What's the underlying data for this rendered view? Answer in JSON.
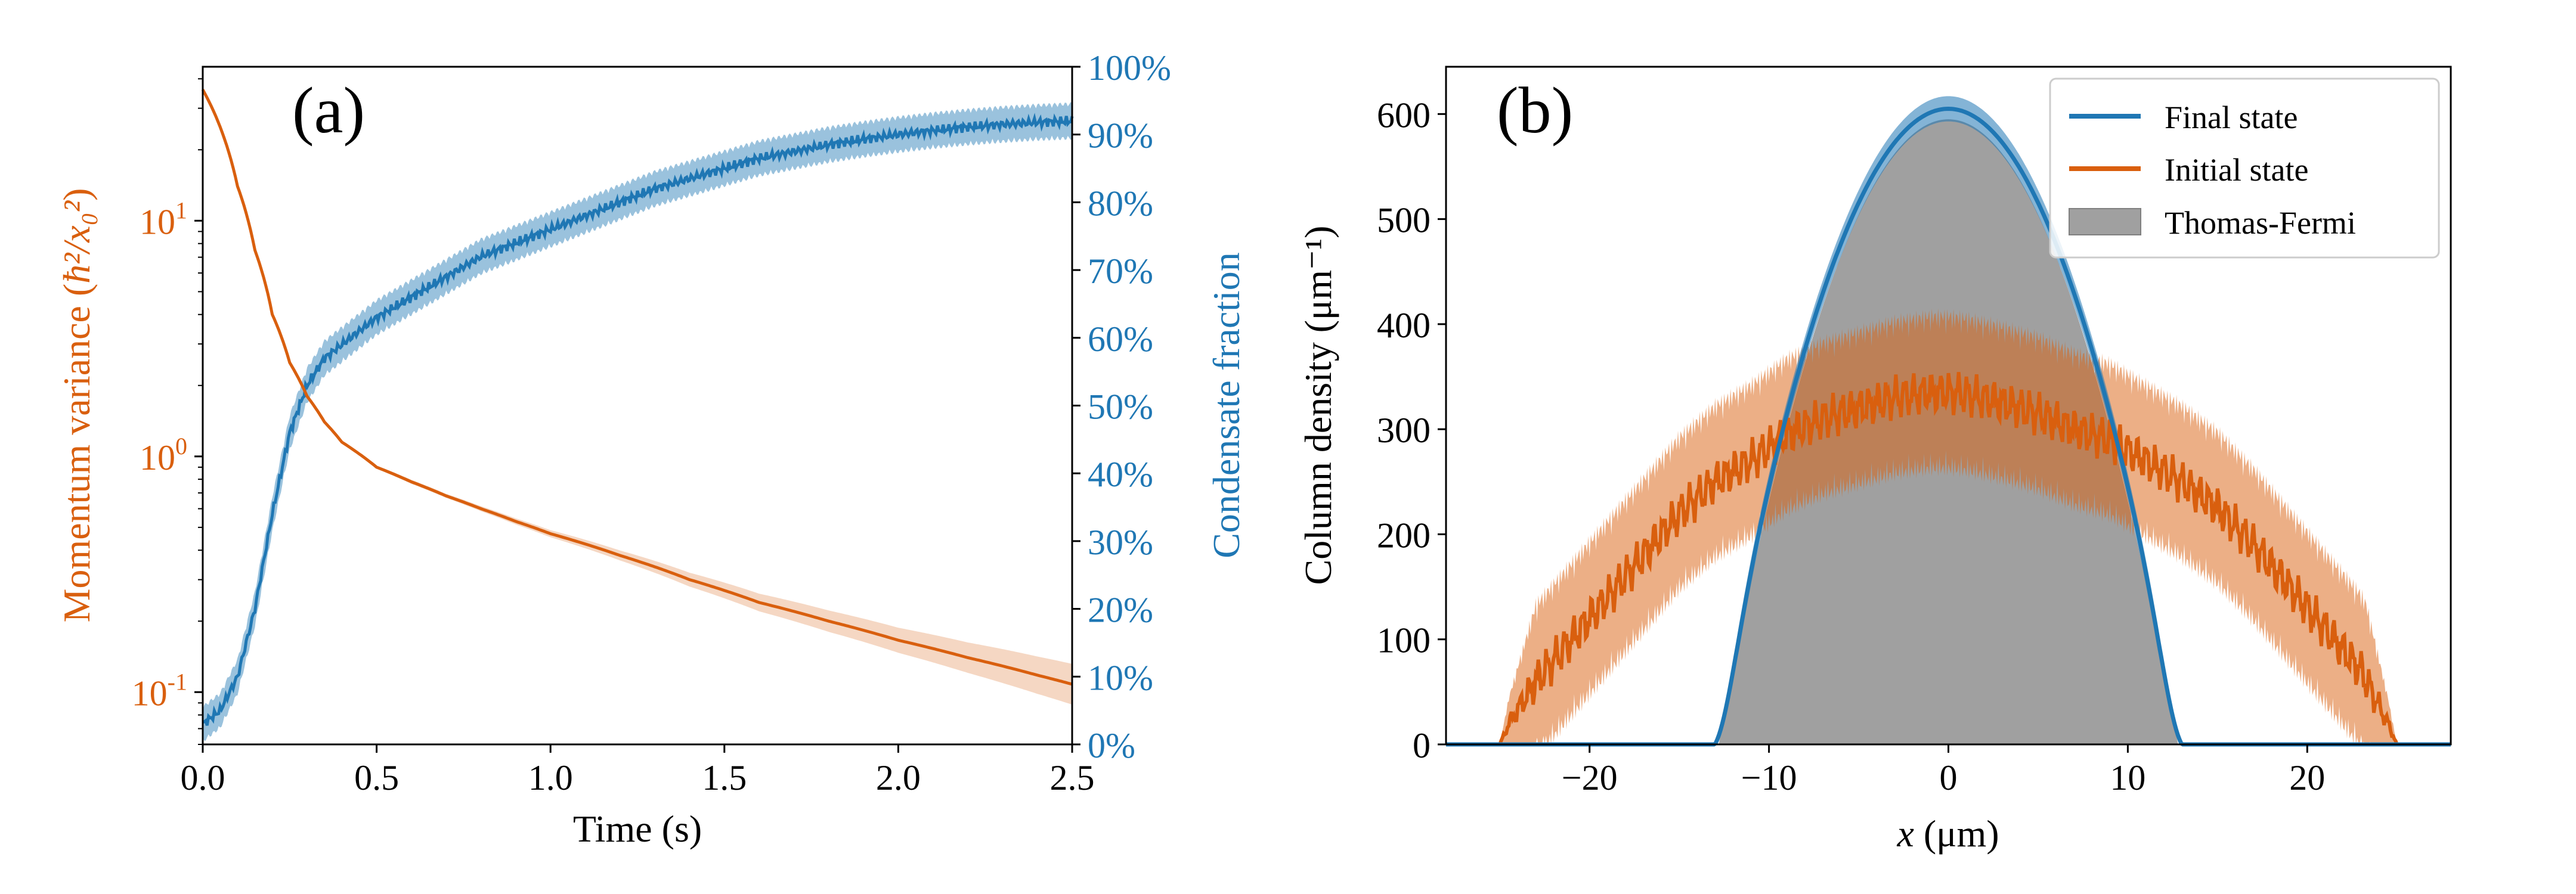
{
  "chart_data": [
    {
      "type": "line",
      "panel_label": "(a)",
      "xlabel": "Time (s)",
      "xlim": [
        0.0,
        2.5
      ],
      "xticks": [
        {
          "v": 0.0,
          "label": "0.0"
        },
        {
          "v": 0.5,
          "label": "0.5"
        },
        {
          "v": 1.0,
          "label": "1.0"
        },
        {
          "v": 1.5,
          "label": "1.5"
        },
        {
          "v": 2.0,
          "label": "2.0"
        },
        {
          "v": 2.5,
          "label": "2.5"
        }
      ],
      "left_axis": {
        "label_main": "Momentum variance (",
        "label_math": "ħ²/x₀²",
        "label_close": ")",
        "scale": "log",
        "lim": [
          0.06,
          45
        ],
        "ticks": [
          {
            "v": 0.1,
            "base": "10",
            "exp": "-1"
          },
          {
            "v": 1,
            "base": "10",
            "exp": "0"
          },
          {
            "v": 10,
            "base": "10",
            "exp": "1"
          }
        ],
        "color": "#d95f0e"
      },
      "right_axis": {
        "label": "Condensate fraction",
        "scale": "linear",
        "lim": [
          0,
          100
        ],
        "ticks": [
          "0%",
          "10%",
          "20%",
          "30%",
          "40%",
          "50%",
          "60%",
          "70%",
          "80%",
          "90%",
          "100%"
        ],
        "tick_values": [
          0,
          10,
          20,
          30,
          40,
          50,
          60,
          70,
          80,
          90,
          100
        ],
        "color": "#1f77b4"
      },
      "series": [
        {
          "name": "Momentum variance",
          "axis": "left",
          "color": "#d95f0e",
          "x": [
            0.0,
            0.05,
            0.1,
            0.15,
            0.2,
            0.25,
            0.3,
            0.35,
            0.4,
            0.5,
            0.6,
            0.7,
            0.8,
            0.9,
            1.0,
            1.2,
            1.4,
            1.6,
            1.8,
            2.0,
            2.2,
            2.4,
            2.5
          ],
          "y": [
            36,
            25,
            14,
            7.5,
            4.0,
            2.5,
            1.8,
            1.4,
            1.15,
            0.9,
            0.78,
            0.68,
            0.6,
            0.53,
            0.47,
            0.38,
            0.3,
            0.24,
            0.2,
            0.166,
            0.14,
            0.118,
            0.108
          ],
          "band_frac": [
            0,
            0,
            0,
            0,
            0,
            0,
            0,
            0,
            0.01,
            0.015,
            0.02,
            0.02,
            0.025,
            0.03,
            0.035,
            0.05,
            0.07,
            0.09,
            0.11,
            0.13,
            0.16,
            0.2,
            0.22
          ]
        },
        {
          "name": "Condensate fraction",
          "axis": "right",
          "color": "#1f77b4",
          "x": [
            0.0,
            0.05,
            0.1,
            0.15,
            0.2,
            0.25,
            0.3,
            0.35,
            0.4,
            0.5,
            0.6,
            0.7,
            0.8,
            0.9,
            1.0,
            1.1,
            1.2,
            1.3,
            1.4,
            1.5,
            1.6,
            1.7,
            1.8,
            1.9,
            2.0,
            2.1,
            2.2,
            2.3,
            2.4,
            2.5
          ],
          "y": [
            3,
            5,
            10,
            20,
            34,
            46,
            53,
            57,
            59,
            63,
            66,
            69,
            72,
            74,
            76,
            78,
            80,
            82,
            83.5,
            85,
            86.5,
            87.5,
            88.5,
            89.3,
            90,
            90.6,
            91.1,
            91.5,
            91.8,
            92
          ],
          "band": 2.0
        }
      ]
    },
    {
      "type": "line",
      "panel_label": "(b)",
      "xlabel_var": "x",
      "xlabel_unit": " (μm)",
      "ylabel": "Column density (μm⁻¹)",
      "xlim": [
        -28,
        28
      ],
      "ylim": [
        0,
        645
      ],
      "xticks": [
        {
          "v": -20,
          "label": "−20"
        },
        {
          "v": -10,
          "label": "−10"
        },
        {
          "v": 0,
          "label": "0"
        },
        {
          "v": 10,
          "label": "10"
        },
        {
          "v": 20,
          "label": "20"
        }
      ],
      "yticks": [
        0,
        100,
        200,
        300,
        400,
        500,
        600
      ],
      "legend": {
        "location": "upper right",
        "entries": [
          {
            "label": "Final state",
            "color": "#1f77b4",
            "kind": "line"
          },
          {
            "label": "Initial state",
            "color": "#d95f0e",
            "kind": "line"
          },
          {
            "label": "Thomas-Fermi",
            "color": "#a0a0a0",
            "kind": "patch"
          }
        ]
      },
      "thomas_fermi": {
        "peak": 595,
        "radius": 12.8
      },
      "final_state": {
        "peak": 605,
        "radius": 13.0,
        "band": 12
      },
      "initial_state": {
        "x": [
          -25,
          -24.5,
          -23,
          -21,
          -19,
          -17,
          -15,
          -13,
          -11,
          -9,
          -7,
          -5,
          -3,
          -1,
          0,
          1,
          3,
          5,
          7,
          9,
          11,
          13,
          15,
          17,
          19,
          21,
          23,
          24.5,
          25
        ],
        "y": [
          0,
          20,
          60,
          100,
          140,
          180,
          220,
          250,
          270,
          295,
          310,
          320,
          330,
          335,
          335,
          333,
          325,
          315,
          300,
          290,
          270,
          250,
          225,
          190,
          150,
          110,
          70,
          20,
          0
        ],
        "band": 55
      }
    }
  ]
}
